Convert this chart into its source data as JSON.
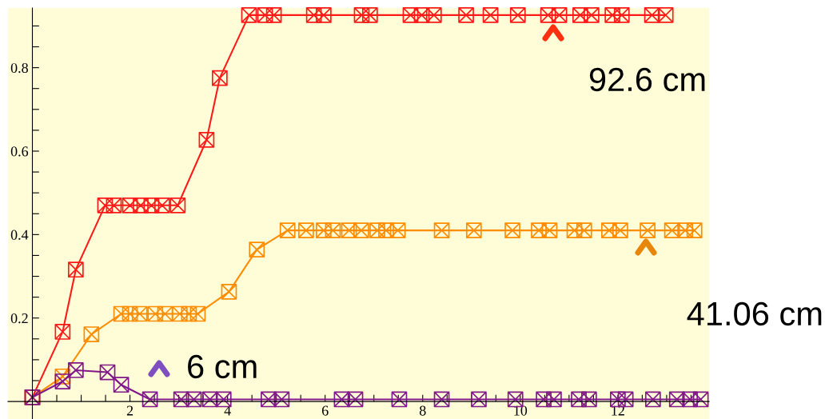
{
  "chart_data": {
    "type": "line",
    "marker": "cross",
    "line_style": "solid",
    "grid": false,
    "xlim": [
      -0.5,
      13.87
    ],
    "ylim": [
      -0.042,
      0.943
    ],
    "xticks": [
      {
        "value": 0.5,
        "label": null
      },
      {
        "value": 1,
        "label": null
      },
      {
        "value": 1.5,
        "label": null
      },
      2,
      {
        "value": 2.5,
        "label": null
      },
      {
        "value": 3,
        "label": null
      },
      {
        "value": 3.5,
        "label": null
      },
      4,
      {
        "value": 4.5,
        "label": null
      },
      {
        "value": 5,
        "label": null
      },
      {
        "value": 5.5,
        "label": null
      },
      6,
      {
        "value": 6.5,
        "label": null
      },
      {
        "value": 7,
        "label": null
      },
      {
        "value": 7.5,
        "label": null
      },
      8,
      {
        "value": 8.5,
        "label": null
      },
      {
        "value": 9,
        "label": null
      },
      {
        "value": 9.5,
        "label": null
      },
      10,
      {
        "value": 10.5,
        "label": null
      },
      {
        "value": 11,
        "label": null
      },
      {
        "value": 11.5,
        "label": null
      },
      12,
      {
        "value": 12.5,
        "label": null
      },
      {
        "value": 13,
        "label": null
      },
      {
        "value": 13.5,
        "label": null
      }
    ],
    "yticks": [
      {
        "value": 0.05,
        "label": null
      },
      {
        "value": 0.1,
        "label": null
      },
      {
        "value": 0.15,
        "label": null
      },
      0.2,
      {
        "value": 0.25,
        "label": null
      },
      {
        "value": 0.3,
        "label": null
      },
      {
        "value": 0.35,
        "label": null
      },
      0.4,
      {
        "value": 0.45,
        "label": null
      },
      {
        "value": 0.5,
        "label": null
      },
      {
        "value": 0.55,
        "label": null
      },
      0.6,
      {
        "value": 0.65,
        "label": null
      },
      {
        "value": 0.7,
        "label": null
      },
      {
        "value": 0.75,
        "label": null
      },
      0.8,
      {
        "value": 0.85,
        "label": null
      },
      {
        "value": 0.9,
        "label": null
      }
    ],
    "series": [
      {
        "color": "#ff1a1a",
        "x": [
          0,
          0.62,
          0.89,
          1.49,
          1.67,
          2.0,
          2.22,
          2.44,
          2.66,
          2.98,
          3.57,
          3.84,
          4.44,
          4.77,
          4.95,
          5.77,
          5.97,
          6.75,
          6.92,
          7.75,
          7.98,
          8.23,
          8.89,
          9.39,
          9.95,
          10.57,
          10.8,
          11.23,
          11.46,
          11.89,
          12.08,
          12.7,
          12.98
        ],
        "values": [
          0.01,
          0.167,
          0.316,
          0.47,
          0.47,
          0.47,
          0.47,
          0.47,
          0.47,
          0.47,
          0.627,
          0.775,
          0.926,
          0.926,
          0.926,
          0.926,
          0.926,
          0.926,
          0.926,
          0.926,
          0.926,
          0.926,
          0.926,
          0.926,
          0.926,
          0.926,
          0.926,
          0.926,
          0.926,
          0.926,
          0.926,
          0.926,
          0.926
        ]
      },
      {
        "color": "#ff8c00",
        "x": [
          0,
          0.62,
          1.21,
          1.82,
          2.0,
          2.2,
          2.52,
          2.72,
          3.02,
          3.21,
          3.39,
          4.03,
          4.6,
          5.23,
          5.61,
          5.97,
          6.16,
          6.49,
          6.74,
          7.07,
          7.25,
          7.49,
          8.39,
          9.05,
          9.84,
          10.38,
          10.6,
          11.11,
          11.31,
          11.82,
          12.05,
          12.61,
          13.11,
          13.38,
          13.57
        ],
        "values": [
          0.01,
          0.06,
          0.161,
          0.21,
          0.21,
          0.21,
          0.21,
          0.21,
          0.21,
          0.21,
          0.21,
          0.263,
          0.364,
          0.41,
          0.41,
          0.41,
          0.41,
          0.41,
          0.41,
          0.41,
          0.41,
          0.41,
          0.41,
          0.41,
          0.41,
          0.41,
          0.41,
          0.41,
          0.41,
          0.41,
          0.41,
          0.41,
          0.41,
          0.41,
          0.41
        ]
      },
      {
        "color": "#80188a",
        "x": [
          0,
          0.62,
          0.89,
          1.54,
          1.82,
          2.41,
          3.05,
          3.31,
          3.64,
          3.92,
          4.84,
          5.11,
          6.34,
          6.62,
          7.52,
          8.39,
          9.15,
          9.9,
          10.48,
          10.69,
          11.2,
          11.41,
          12.0,
          12.16,
          12.72,
          13.21,
          13.48,
          13.7
        ],
        "values": [
          0.01,
          0.048,
          0.075,
          0.07,
          0.04,
          0.005,
          0.005,
          0.005,
          0.005,
          0.005,
          0.005,
          0.005,
          0.005,
          0.005,
          0.005,
          0.005,
          0.005,
          0.005,
          0.005,
          0.005,
          0.005,
          0.005,
          0.005,
          0.005,
          0.005,
          0.005,
          0.005,
          0.005
        ]
      }
    ],
    "annotations": [
      "92.6 cm",
      "41.06 cm",
      "6 cm"
    ]
  }
}
